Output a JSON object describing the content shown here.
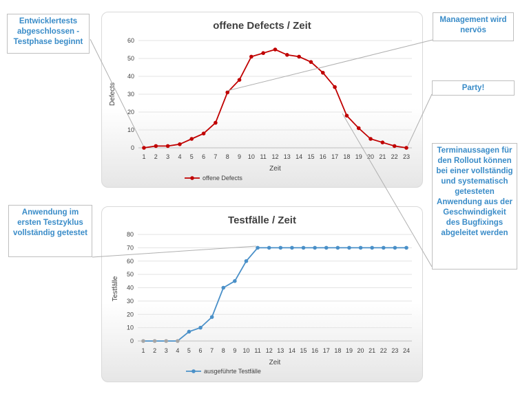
{
  "callouts": {
    "dev_tests": "Entwicklertests abgeschlossen - Testphase beginnt",
    "management": "Management wird nervös",
    "party": "Party!",
    "first_cycle": "Anwendung im ersten Testzyklus vollständig getestet",
    "forecast": "Terminaussagen für den Rollout können bei einer vollständig und systematisch getesteten Anwendung aus der Geschwindigkeit des Bugfixings abgeleitet werden"
  },
  "chart_data": [
    {
      "type": "line",
      "title": "offene Defects / Zeit",
      "xlabel": "Zeit",
      "ylabel": "Defects",
      "ylim": [
        0,
        60
      ],
      "yticks": [
        0,
        10,
        20,
        30,
        40,
        50,
        60
      ],
      "categories": [
        "1",
        "2",
        "3",
        "4",
        "5",
        "6",
        "7",
        "8",
        "9",
        "10",
        "11",
        "12",
        "13",
        "14",
        "15",
        "16",
        "17",
        "18",
        "19",
        "20",
        "21",
        "22",
        "23"
      ],
      "series": [
        {
          "name": "offene Defects",
          "color": "#c00000",
          "values": [
            0,
            1,
            1,
            2,
            5,
            8,
            14,
            31,
            38,
            51,
            53,
            55,
            52,
            51,
            48,
            42,
            34,
            18,
            11,
            5,
            3,
            1,
            0
          ]
        }
      ],
      "grid": true,
      "legend": "bottom"
    },
    {
      "type": "line",
      "title": "Testfälle / Zeit",
      "xlabel": "Zeit",
      "ylabel": "Testfälle",
      "ylim": [
        0,
        80
      ],
      "yticks": [
        0,
        10,
        20,
        30,
        40,
        50,
        60,
        70,
        80
      ],
      "categories": [
        "1",
        "2",
        "3",
        "4",
        "5",
        "6",
        "7",
        "8",
        "9",
        "10",
        "11",
        "12",
        "13",
        "14",
        "15",
        "16",
        "17",
        "18",
        "19",
        "20",
        "21",
        "22",
        "23",
        "24"
      ],
      "series": [
        {
          "name": "ausgeführte Testfälle",
          "color": "#4a90c8",
          "values": [
            0,
            0,
            0,
            0,
            7,
            10,
            18,
            40,
            45,
            60,
            70,
            70,
            70,
            70,
            70,
            70,
            70,
            70,
            70,
            70,
            70,
            70,
            70,
            70
          ]
        }
      ],
      "grid": true,
      "legend": "bottom"
    }
  ]
}
